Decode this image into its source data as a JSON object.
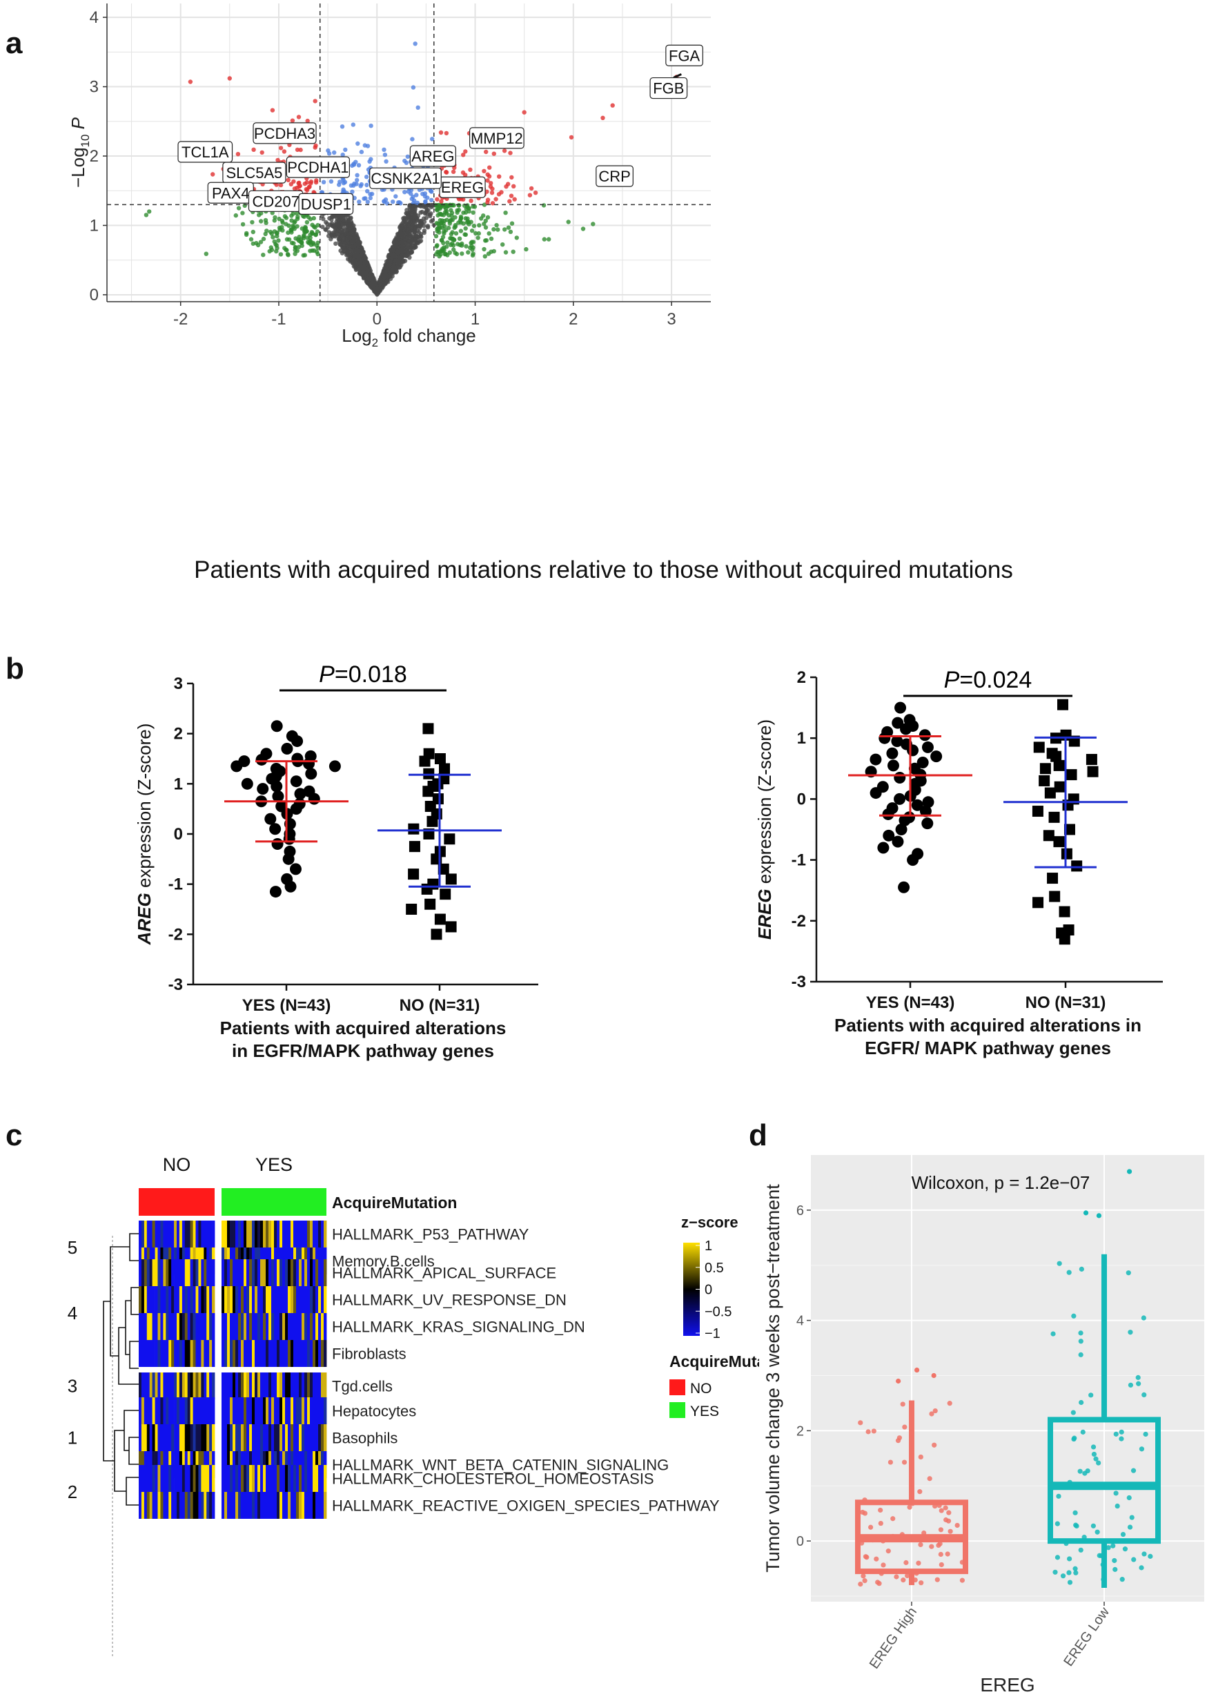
{
  "panels": {
    "a": "a",
    "b": "b",
    "c": "c",
    "d": "d"
  },
  "chart_data": [
    {
      "id": "volcano",
      "type": "scatter",
      "title": "",
      "xlabel_main": "Log",
      "xlabel_sub": "2",
      "xlabel_rest": " fold change",
      "ylabel_main": "−Log",
      "ylabel_sub": "10",
      "ylabel_rest": " P",
      "xlim": [
        -2.75,
        3.4
      ],
      "ylim": [
        -0.1,
        4.2
      ],
      "xticks": [
        -2,
        -1,
        0,
        1,
        2,
        3
      ],
      "yticks": [
        0,
        1,
        2,
        3,
        4
      ],
      "fc_threshold": [
        -0.58,
        0.58
      ],
      "p_threshold": 1.3,
      "colors": {
        "ns": "#4a4a4a",
        "fc": "#2e8b2e",
        "p": "#4f7fe0",
        "both": "#e03030"
      },
      "caption": "Patients with acquired mutations relative to those without acquired mutations",
      "labels": [
        {
          "text": "FGA",
          "x": 3.13,
          "y": 3.45
        },
        {
          "text": "FGB",
          "x": 2.97,
          "y": 2.98
        },
        {
          "text": "MMP12",
          "x": 1.22,
          "y": 2.26
        },
        {
          "text": "CRP",
          "x": 2.42,
          "y": 1.71
        },
        {
          "text": "AREG",
          "x": 0.57,
          "y": 2.0
        },
        {
          "text": "EREG",
          "x": 0.87,
          "y": 1.55
        },
        {
          "text": "CSNK2A1",
          "x": 0.29,
          "y": 1.68
        },
        {
          "text": "PCDHA3",
          "x": -0.94,
          "y": 2.33
        },
        {
          "text": "TCL1A",
          "x": -1.75,
          "y": 2.06
        },
        {
          "text": "SLC5A5",
          "x": -1.25,
          "y": 1.76
        },
        {
          "text": "PCDHA1",
          "x": -0.6,
          "y": 1.84
        },
        {
          "text": "PAX4",
          "x": -1.49,
          "y": 1.47
        },
        {
          "text": "CD207",
          "x": -1.03,
          "y": 1.35
        },
        {
          "text": "DUSP1",
          "x": -0.52,
          "y": 1.31
        }
      ]
    },
    {
      "id": "areg",
      "type": "scatter",
      "ylabel_gene": "AREG",
      "ylabel_rest": " expression (Z-score)",
      "ylim": [
        -3,
        3
      ],
      "yticks": [
        -3,
        -2,
        -1,
        0,
        1,
        2,
        3
      ],
      "categories": [
        "YES (N=43)",
        "NO (N=31)"
      ],
      "xlabel_lines": [
        "Patients with acquired alterations",
        "in EGFR/MAPK pathway genes"
      ],
      "p_prefix": "P",
      "p_value": "=0.018",
      "series": [
        {
          "name": "YES",
          "marker": "circle",
          "n": 43,
          "mean": 0.65,
          "sd_low": -0.15,
          "sd_high": 1.45,
          "values": [
            2.15,
            1.95,
            1.85,
            1.7,
            1.6,
            1.55,
            1.5,
            1.48,
            1.45,
            1.45,
            1.4,
            1.35,
            1.35,
            1.3,
            1.25,
            1.2,
            1.15,
            1.1,
            1.05,
            1.0,
            0.95,
            0.9,
            0.85,
            0.8,
            0.75,
            0.7,
            0.65,
            0.6,
            0.55,
            0.5,
            0.4,
            0.3,
            0.2,
            0.1,
            0.0,
            -0.1,
            -0.2,
            -0.35,
            -0.5,
            -0.7,
            -0.9,
            -1.05,
            -1.15
          ]
        },
        {
          "name": "NO",
          "marker": "square",
          "n": 31,
          "mean": 0.07,
          "sd_low": -1.05,
          "sd_high": 1.18,
          "values": [
            2.1,
            1.6,
            1.5,
            1.45,
            1.3,
            1.2,
            1.1,
            1.0,
            0.95,
            0.85,
            0.7,
            0.55,
            0.4,
            0.25,
            0.1,
            0.0,
            -0.1,
            -0.25,
            -0.35,
            -0.5,
            -0.7,
            -0.8,
            -0.9,
            -1.0,
            -1.1,
            -1.2,
            -1.4,
            -1.5,
            -1.7,
            -1.85,
            -2.0
          ]
        }
      ],
      "colors": {
        "yes": "#e02020",
        "no": "#2030d0"
      }
    },
    {
      "id": "ereg",
      "type": "scatter",
      "ylabel_gene": "EREG",
      "ylabel_rest": " expression (Z-score)",
      "ylim": [
        -3,
        2
      ],
      "yticks": [
        -3,
        -2,
        -1,
        0,
        1,
        2
      ],
      "categories": [
        "YES (N=43)",
        "NO (N=31)"
      ],
      "xlabel_lines": [
        "Patients with acquired alterations in",
        "EGFR/ MAPK pathway  genes"
      ],
      "p_prefix": "P",
      "p_value": "=0.024",
      "series": [
        {
          "name": "YES",
          "marker": "circle",
          "n": 43,
          "mean": 0.39,
          "sd_low": -0.27,
          "sd_high": 1.03,
          "values": [
            1.5,
            1.3,
            1.25,
            1.2,
            1.15,
            1.1,
            1.05,
            1.0,
            0.95,
            0.9,
            0.85,
            0.8,
            0.75,
            0.7,
            0.65,
            0.6,
            0.55,
            0.5,
            0.45,
            0.4,
            0.35,
            0.3,
            0.25,
            0.2,
            0.15,
            0.1,
            0.05,
            0.0,
            -0.05,
            -0.1,
            -0.15,
            -0.2,
            -0.25,
            -0.3,
            -0.35,
            -0.4,
            -0.5,
            -0.6,
            -0.7,
            -0.8,
            -0.9,
            -1.0,
            -1.45
          ]
        },
        {
          "name": "NO",
          "marker": "square",
          "n": 31,
          "mean": -0.05,
          "sd_low": -1.12,
          "sd_high": 1.01,
          "values": [
            1.55,
            1.05,
            1.0,
            0.95,
            0.85,
            0.75,
            0.7,
            0.65,
            0.55,
            0.5,
            0.45,
            0.4,
            0.3,
            0.2,
            0.1,
            0.0,
            -0.1,
            -0.2,
            -0.3,
            -0.5,
            -0.6,
            -0.7,
            -0.9,
            -1.1,
            -1.3,
            -1.6,
            -1.7,
            -1.85,
            -2.15,
            -2.2,
            -2.3
          ]
        }
      ],
      "colors": {
        "yes": "#e02020",
        "no": "#2030d0"
      }
    },
    {
      "id": "heatmap",
      "type": "heatmap",
      "column_groups": [
        "NO",
        "YES"
      ],
      "annotation_label": "AcquireMutation",
      "cluster_labels": [
        "5",
        "4",
        "3",
        "1",
        "2"
      ],
      "row_groups": [
        {
          "cluster": "5",
          "rows": [
            "HALLMARK_P53_PATHWAY",
            "Memory.B.cells"
          ]
        },
        {
          "cluster": "4",
          "rows": [
            "HALLMARK_APICAL_SURFACE",
            "HALLMARK_UV_RESPONSE_DN",
            "HALLMARK_KRAS_SIGNALING_DN",
            "Fibroblasts"
          ]
        },
        {
          "cluster": "3",
          "rows": [
            "Tgd.cells"
          ]
        },
        {
          "cluster": "1",
          "rows": [
            "Hepatocytes",
            "Basophils",
            "HALLMARK_WNT_BETA_CATENIN_SIGNALING"
          ]
        },
        {
          "cluster": "2",
          "rows": [
            "HALLMARK_CHOLESTEROL_HOMEOSTASIS",
            "HALLMARK_REACTIVE_OXIGEN_SPECIES_PATHWAY"
          ]
        }
      ],
      "colorbar_title": "z−score",
      "colorbar_ticks": [
        "1",
        "0.5",
        "0",
        "−0.5",
        "−1"
      ],
      "legend_title": "AcquireMutation",
      "legend_items": [
        {
          "label": "NO",
          "color": "#ff1a1a"
        },
        {
          "label": "YES",
          "color": "#22ee22"
        }
      ],
      "colors": {
        "low": "#1010ee",
        "mid": "#000000",
        "high": "#ffe000"
      }
    },
    {
      "id": "boxplot",
      "type": "box",
      "annotation": "Wilcoxon, p = 1.2e−07",
      "ylabel": "Tumor volume change 3 weeks post−treatment",
      "xlabel": "EREG",
      "categories": [
        "EREG High",
        "EREG Low"
      ],
      "ylim": [
        -1.1,
        7.0
      ],
      "yticks": [
        0,
        2,
        4,
        6
      ],
      "groups": [
        {
          "name": "EREG High",
          "color": "#f07468",
          "min": -0.8,
          "q1": -0.55,
          "median": 0.05,
          "q3": 0.7,
          "max": 2.55,
          "outliers": [
            2.9,
            3.0,
            3.1
          ]
        },
        {
          "name": "EREG Low",
          "color": "#14b8b8",
          "min": -0.85,
          "q1": 0.0,
          "median": 1.0,
          "q3": 2.2,
          "max": 5.2,
          "outliers": [
            5.9,
            5.95,
            6.7
          ]
        }
      ]
    }
  ]
}
